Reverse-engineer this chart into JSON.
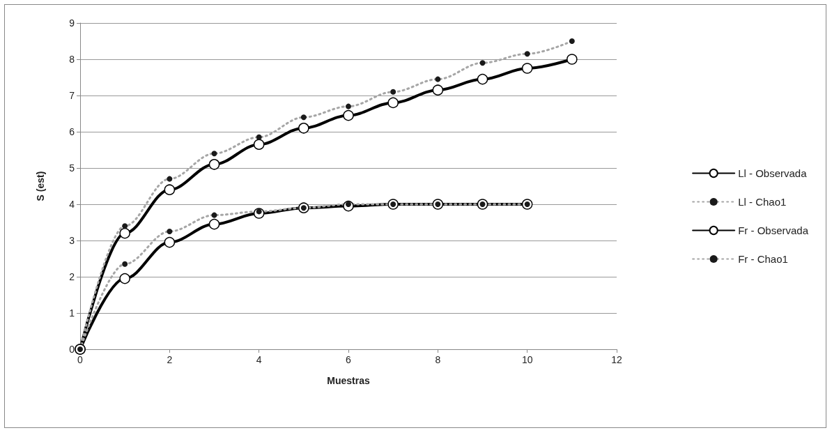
{
  "chart_data": {
    "type": "line",
    "xlabel": "Muestras",
    "ylabel": "S (est)",
    "xlim": [
      0,
      12
    ],
    "xticks": [
      0,
      2,
      4,
      6,
      8,
      10,
      12
    ],
    "ylim": [
      0,
      9
    ],
    "yticks": [
      0,
      1,
      2,
      3,
      4,
      5,
      6,
      7,
      8,
      9
    ],
    "grid": "y",
    "legend": "right",
    "marker": "circle",
    "series": [
      {
        "name": "Ll - Observada",
        "color": "#000000",
        "line_style": "solid",
        "x": [
          0,
          1,
          2,
          3,
          4,
          5,
          6,
          7,
          8,
          9,
          10,
          11
        ],
        "values": [
          0,
          3.2,
          4.4,
          5.1,
          5.65,
          6.1,
          6.45,
          6.8,
          7.15,
          7.45,
          7.75,
          8.0
        ]
      },
      {
        "name": "Ll - Chao1",
        "color": "#a6a6a6",
        "line_style": "dotted",
        "x": [
          0,
          1,
          2,
          3,
          4,
          5,
          6,
          7,
          8,
          9,
          10,
          11
        ],
        "values": [
          0,
          3.4,
          4.7,
          5.4,
          5.85,
          6.4,
          6.7,
          7.1,
          7.45,
          7.9,
          8.15,
          8.5
        ]
      },
      {
        "name": "Fr - Observada",
        "color": "#000000",
        "line_style": "solid",
        "x": [
          0,
          1,
          2,
          3,
          4,
          5,
          6,
          7,
          8,
          9,
          10
        ],
        "values": [
          0,
          1.95,
          2.95,
          3.45,
          3.75,
          3.9,
          3.95,
          4,
          4,
          4,
          4
        ]
      },
      {
        "name": "Fr - Chao1",
        "color": "#a6a6a6",
        "line_style": "dotted",
        "x": [
          0,
          1,
          2,
          3,
          4,
          5,
          6,
          7,
          8,
          9,
          10
        ],
        "values": [
          0,
          2.35,
          3.25,
          3.7,
          3.8,
          3.9,
          4,
          4,
          4,
          4,
          4
        ]
      }
    ]
  }
}
